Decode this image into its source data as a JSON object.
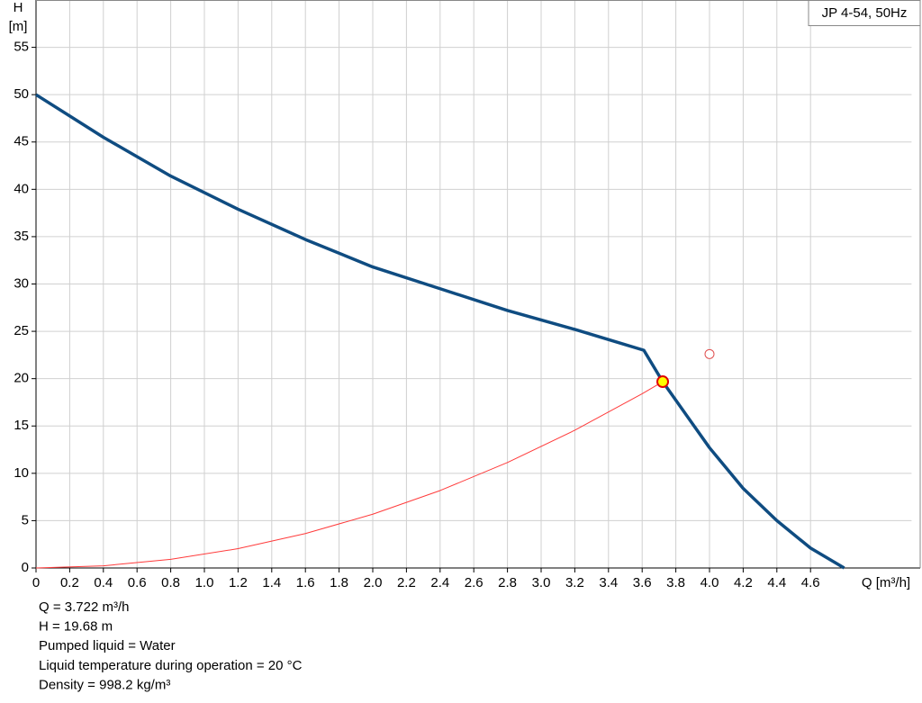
{
  "chart_data": {
    "type": "line",
    "legend": "JP 4-54, 50Hz",
    "xlabel": "Q [m³/h]",
    "ylabel": "H",
    "yunit": "[m]",
    "xlim": [
      0,
      5.2
    ],
    "ylim": [
      0,
      60
    ],
    "xticks": [
      0,
      0.2,
      0.4,
      0.6,
      0.8,
      {
        "value": 1,
        "label": "1.0"
      },
      1.2,
      1.4,
      1.6,
      1.8,
      {
        "value": 2,
        "label": "2.0"
      },
      2.2,
      2.4,
      2.6,
      2.8,
      {
        "value": 3,
        "label": "3.0"
      },
      3.2,
      3.4,
      3.6,
      3.8,
      {
        "value": 4,
        "label": "4.0"
      },
      4.2,
      4.4,
      4.6
    ],
    "yticks": [
      0,
      5,
      10,
      15,
      20,
      25,
      30,
      35,
      40,
      45,
      50,
      55
    ],
    "grid": true,
    "series": [
      {
        "color": "#0f4c81",
        "width": 3.5,
        "x": [
          0,
          0.4,
          0.8,
          1.2,
          1.6,
          2.0,
          2.4,
          2.8,
          3.2,
          3.61,
          3.722,
          4.0,
          4.2,
          4.4,
          4.6,
          4.8
        ],
        "values": [
          50,
          45.5,
          41.4,
          37.9,
          34.7,
          31.8,
          29.5,
          27.2,
          25.2,
          23.0,
          19.68,
          12.7,
          8.4,
          5.0,
          2.1,
          0
        ]
      },
      {
        "color": "#ff3b3b",
        "width": 1,
        "x": [
          0,
          0.4,
          0.8,
          1.2,
          1.6,
          2.0,
          2.4,
          2.8,
          3.2,
          3.6,
          3.722
        ],
        "values": [
          0,
          0.23,
          0.91,
          2.04,
          3.64,
          5.68,
          8.18,
          11.14,
          14.55,
          18.41,
          19.68
        ]
      }
    ],
    "duty_point": {
      "x": 3.722,
      "y": 19.68,
      "color": "#ffff00",
      "stroke": "#e00000"
    },
    "reference_point": {
      "x": 4.0,
      "y": 22.6,
      "color": "#e05050"
    },
    "info": [
      "Q = 3.722 m³/h",
      "H = 19.68 m",
      "Pumped liquid = Water",
      "Liquid temperature during operation = 20 °C",
      "Density = 998.2 kg/m³"
    ]
  }
}
